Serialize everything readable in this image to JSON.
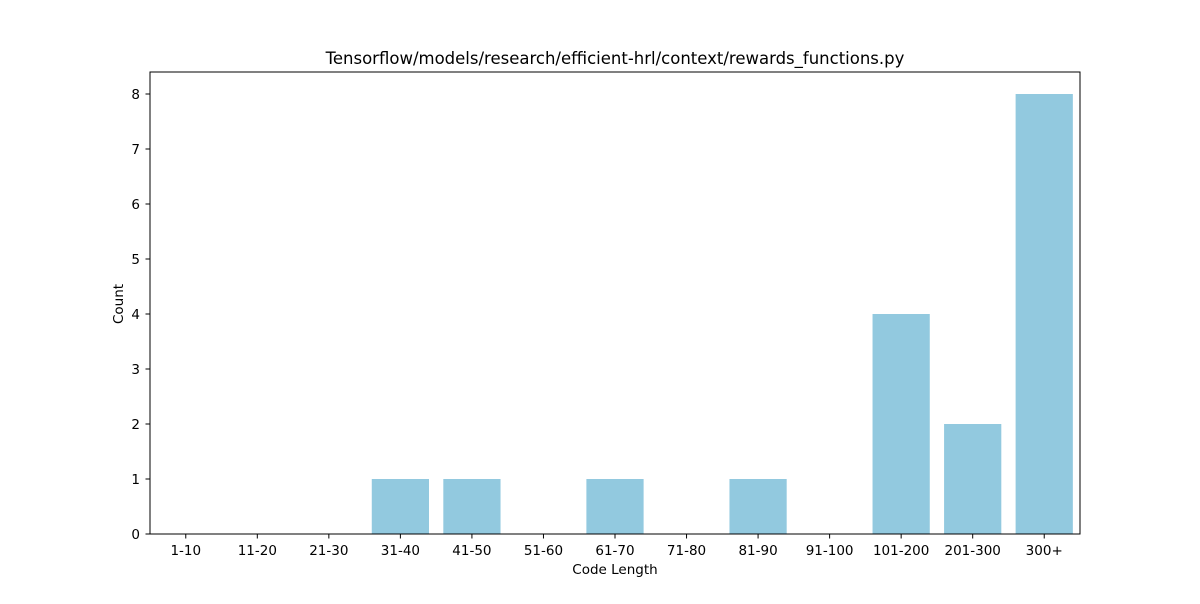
{
  "chart_data": {
    "type": "bar",
    "title": "Tensorflow/models/research/efficient-hrl/context/rewards_functions.py",
    "xlabel": "Code Length",
    "ylabel": "Count",
    "categories": [
      "1-10",
      "11-20",
      "21-30",
      "31-40",
      "41-50",
      "51-60",
      "61-70",
      "71-80",
      "81-90",
      "91-100",
      "101-200",
      "201-300",
      "300+"
    ],
    "values": [
      0,
      0,
      0,
      1,
      1,
      0,
      1,
      0,
      1,
      0,
      4,
      2,
      8
    ],
    "yticks": [
      0,
      1,
      2,
      3,
      4,
      5,
      6,
      7,
      8
    ],
    "ylim": [
      0,
      8.4
    ],
    "grid": false,
    "bar_color": "#92c9df"
  }
}
